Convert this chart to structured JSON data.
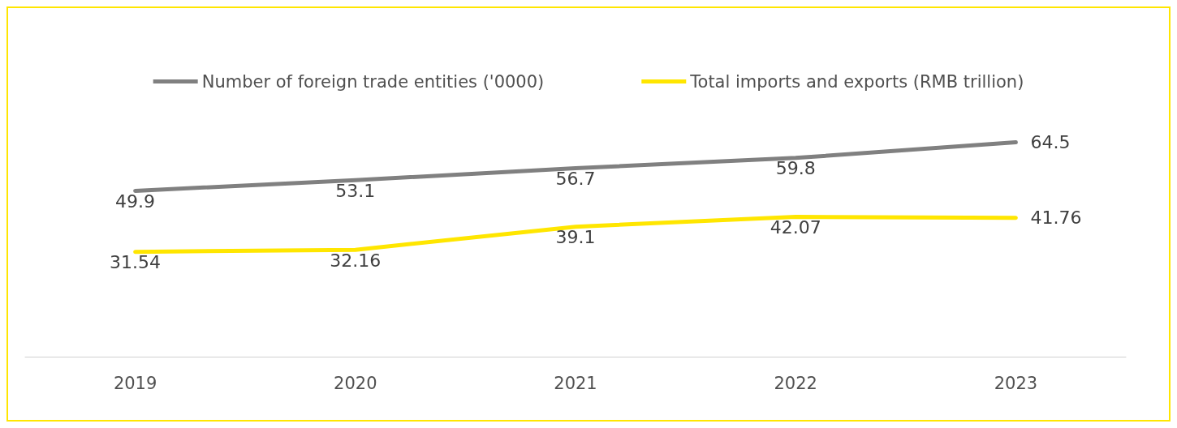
{
  "chart_data": {
    "type": "line",
    "categories": [
      "2019",
      "2020",
      "2021",
      "2022",
      "2023"
    ],
    "series": [
      {
        "name": "Number of foreign trade entities ('0000)",
        "color": "#808080",
        "values": [
          49.9,
          53.1,
          56.7,
          59.8,
          64.5
        ]
      },
      {
        "name": "Total imports and exports (RMB trillion)",
        "color": "#ffe600",
        "values": [
          31.54,
          32.16,
          39.1,
          42.07,
          41.76
        ]
      }
    ],
    "data_labels": true,
    "legend": "top",
    "grid": false,
    "marker": "none",
    "line_style": "solid"
  }
}
